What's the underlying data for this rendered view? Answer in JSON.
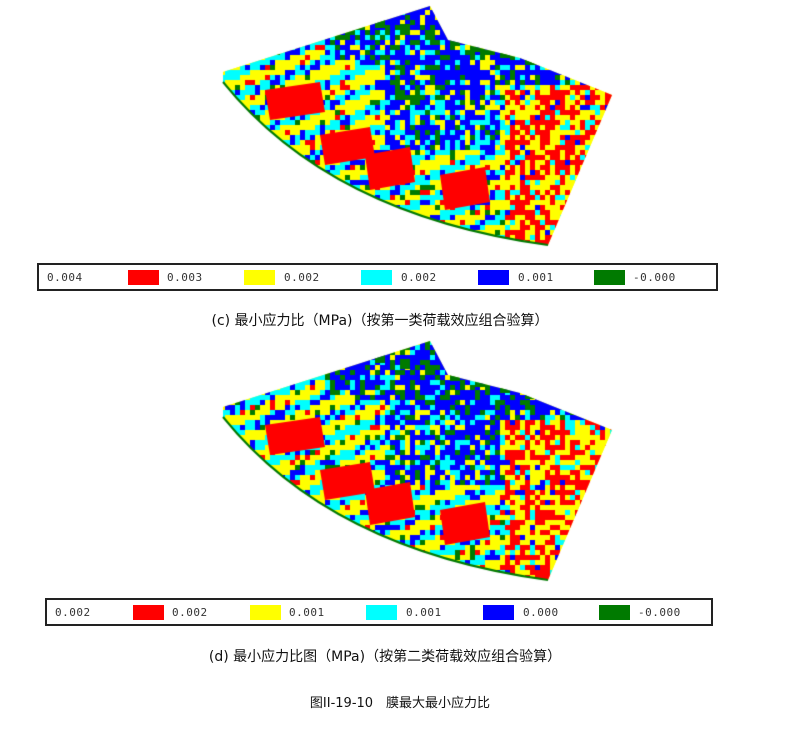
{
  "colors": {
    "red": "#ff0000",
    "yellow": "#ffff00",
    "cyan": "#00ffff",
    "blue": "#0000ff",
    "green": "#007a00"
  },
  "panels": [
    {
      "legend": {
        "first_label": "0.004",
        "items": [
          {
            "color": "#ff0000",
            "label": "0.003"
          },
          {
            "color": "#ffff00",
            "label": "0.002"
          },
          {
            "color": "#00ffff",
            "label": "0.002"
          },
          {
            "color": "#0000ff",
            "label": "0.001"
          },
          {
            "color": "#007a00",
            "label": "-0.000"
          }
        ]
      },
      "caption": "(c) 最小应力比（MPa)（按第一类荷载效应组合验算）"
    },
    {
      "legend": {
        "first_label": "0.002",
        "items": [
          {
            "color": "#ff0000",
            "label": "0.002"
          },
          {
            "color": "#ffff00",
            "label": "0.001"
          },
          {
            "color": "#00ffff",
            "label": "0.001"
          },
          {
            "color": "#0000ff",
            "label": "0.000"
          },
          {
            "color": "#007a00",
            "label": "-0.000"
          }
        ]
      },
      "caption": "(d) 最小应力比图（MPa)（按第二类荷载效应组合验算）"
    }
  ],
  "figure_title": "图II-19-10　膜最大最小应力比"
}
